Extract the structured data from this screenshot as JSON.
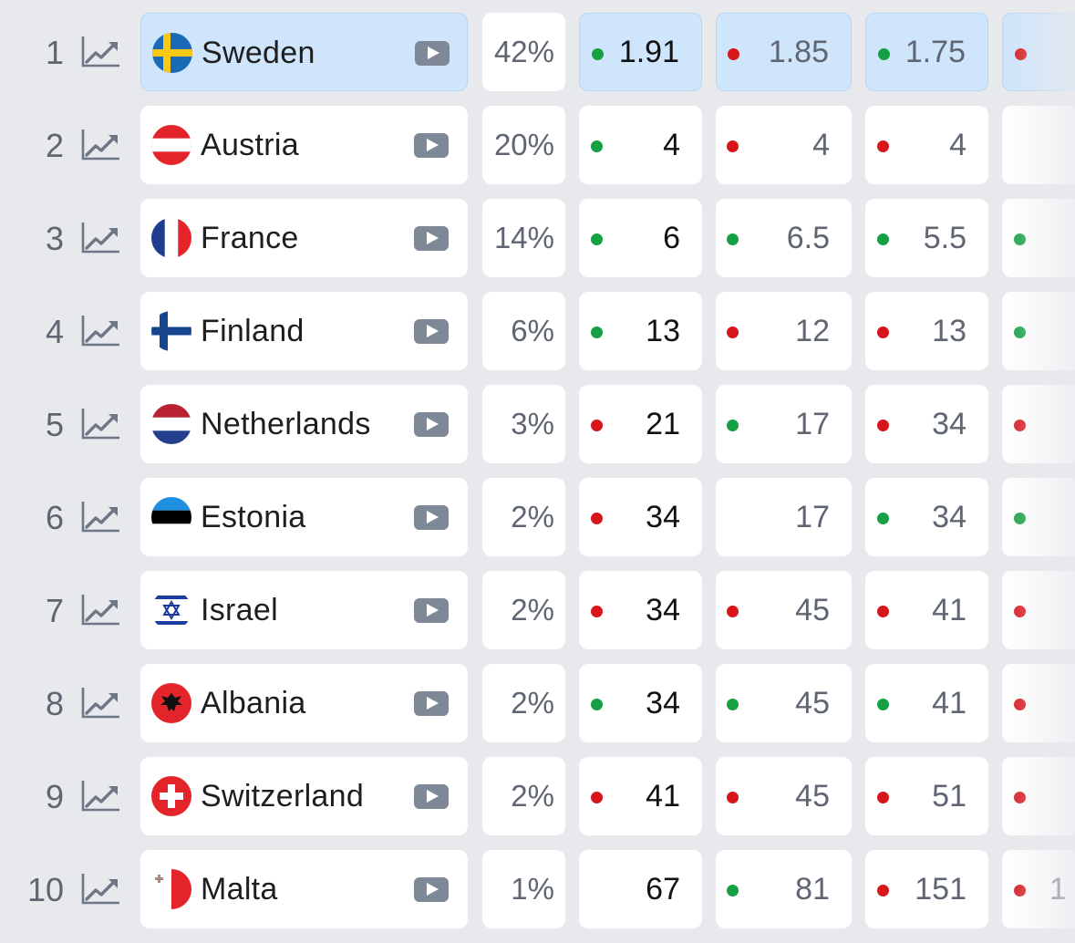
{
  "colors": {
    "highlight": "#cfe5fb",
    "dot_green": "#15a043",
    "dot_red": "#d7161b",
    "rank_text": "#5f6672"
  },
  "icons": {
    "trend": "trend-chart-icon",
    "video": "play-video-icon"
  },
  "rows": [
    {
      "rank": "1",
      "country": "Sweden",
      "flag": "sweden",
      "chance": "42%",
      "highlight": true,
      "odds": [
        {
          "v": "1.91",
          "d": "g"
        },
        {
          "v": "1.85",
          "d": "r"
        },
        {
          "v": "1.75",
          "d": "g"
        },
        {
          "v": "",
          "d": "r"
        }
      ]
    },
    {
      "rank": "2",
      "country": "Austria",
      "flag": "austria",
      "chance": "20%",
      "highlight": false,
      "odds": [
        {
          "v": "4",
          "d": "g"
        },
        {
          "v": "4",
          "d": "r"
        },
        {
          "v": "4",
          "d": "r"
        },
        {
          "v": "",
          "d": "n"
        }
      ]
    },
    {
      "rank": "3",
      "country": "France",
      "flag": "france",
      "chance": "14%",
      "highlight": false,
      "odds": [
        {
          "v": "6",
          "d": "g"
        },
        {
          "v": "6.5",
          "d": "g"
        },
        {
          "v": "5.5",
          "d": "g"
        },
        {
          "v": "",
          "d": "g"
        }
      ]
    },
    {
      "rank": "4",
      "country": "Finland",
      "flag": "finland",
      "chance": "6%",
      "highlight": false,
      "odds": [
        {
          "v": "13",
          "d": "g"
        },
        {
          "v": "12",
          "d": "r"
        },
        {
          "v": "13",
          "d": "r"
        },
        {
          "v": "",
          "d": "g"
        }
      ]
    },
    {
      "rank": "5",
      "country": "Netherlands",
      "flag": "netherlands",
      "chance": "3%",
      "highlight": false,
      "odds": [
        {
          "v": "21",
          "d": "r"
        },
        {
          "v": "17",
          "d": "g"
        },
        {
          "v": "34",
          "d": "r"
        },
        {
          "v": "",
          "d": "r"
        }
      ]
    },
    {
      "rank": "6",
      "country": "Estonia",
      "flag": "estonia",
      "chance": "2%",
      "highlight": false,
      "odds": [
        {
          "v": "34",
          "d": "r"
        },
        {
          "v": "17",
          "d": "n"
        },
        {
          "v": "34",
          "d": "g"
        },
        {
          "v": "",
          "d": "g"
        }
      ]
    },
    {
      "rank": "7",
      "country": "Israel",
      "flag": "israel",
      "chance": "2%",
      "highlight": false,
      "odds": [
        {
          "v": "34",
          "d": "r"
        },
        {
          "v": "45",
          "d": "r"
        },
        {
          "v": "41",
          "d": "r"
        },
        {
          "v": "",
          "d": "r"
        }
      ]
    },
    {
      "rank": "8",
      "country": "Albania",
      "flag": "albania",
      "chance": "2%",
      "highlight": false,
      "odds": [
        {
          "v": "34",
          "d": "g"
        },
        {
          "v": "45",
          "d": "g"
        },
        {
          "v": "41",
          "d": "g"
        },
        {
          "v": "",
          "d": "r"
        }
      ]
    },
    {
      "rank": "9",
      "country": "Switzerland",
      "flag": "switzerland",
      "chance": "2%",
      "highlight": false,
      "odds": [
        {
          "v": "41",
          "d": "r"
        },
        {
          "v": "45",
          "d": "r"
        },
        {
          "v": "51",
          "d": "r"
        },
        {
          "v": "",
          "d": "r"
        }
      ]
    },
    {
      "rank": "10",
      "country": "Malta",
      "flag": "malta",
      "chance": "1%",
      "highlight": false,
      "odds": [
        {
          "v": "67",
          "d": "n"
        },
        {
          "v": "81",
          "d": "g"
        },
        {
          "v": "151",
          "d": "r"
        },
        {
          "v": "1",
          "d": "r"
        }
      ]
    }
  ]
}
